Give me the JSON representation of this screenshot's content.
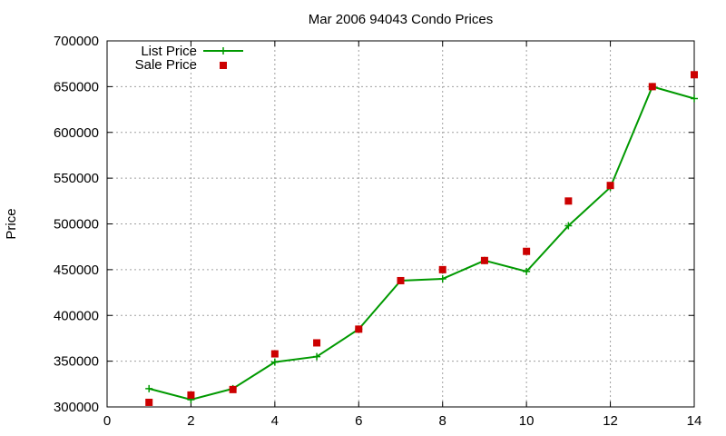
{
  "chart_data": {
    "type": "line",
    "title": "Mar 2006 94043 Condo Prices",
    "xlabel": "",
    "ylabel": "Price",
    "xlim": [
      0,
      14
    ],
    "ylim": [
      300000,
      700000
    ],
    "x_ticks": [
      0,
      2,
      4,
      6,
      8,
      10,
      12,
      14
    ],
    "y_ticks": [
      300000,
      350000,
      400000,
      450000,
      500000,
      550000,
      600000,
      650000,
      700000
    ],
    "grid": true,
    "legend_position": "top-left",
    "series": [
      {
        "name": "List Price",
        "style": "line+cross",
        "color": "#009900",
        "x": [
          1,
          2,
          3,
          4,
          5,
          6,
          7,
          8,
          9,
          10,
          11,
          12,
          13,
          14
        ],
        "values": [
          320000,
          308000,
          320000,
          349000,
          355000,
          385000,
          438000,
          440000,
          460000,
          448000,
          498000,
          540000,
          650000,
          637000
        ]
      },
      {
        "name": "Sale Price",
        "style": "square",
        "color": "#cc0000",
        "x": [
          1,
          2,
          3,
          4,
          5,
          6,
          7,
          8,
          9,
          10,
          11,
          12,
          13,
          14
        ],
        "values": [
          305000,
          313000,
          319000,
          358000,
          370000,
          385000,
          438000,
          450000,
          460000,
          470000,
          525000,
          542000,
          650000,
          663000
        ]
      }
    ]
  }
}
